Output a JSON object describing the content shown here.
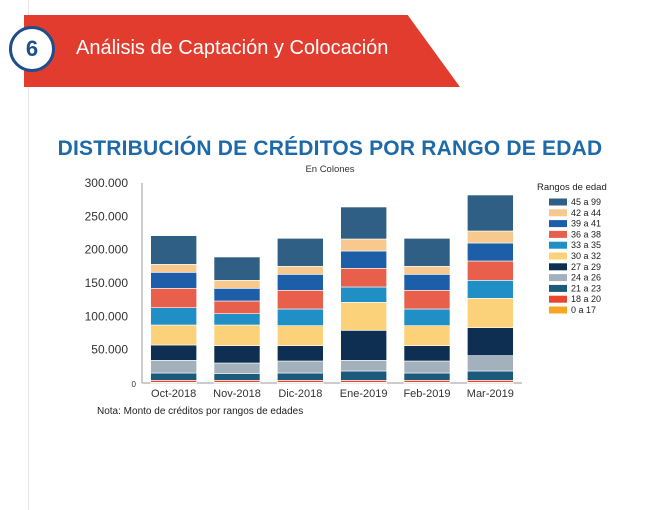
{
  "banner": {
    "number": "6",
    "title": "Análisis de Captación y Colocación"
  },
  "note": "Nota: Monto de créditos por rangos de edades",
  "chart_data": {
    "type": "stacked-bar",
    "title": "DISTRIBUCIÓN DE CRÉDITOS POR RANGO DE EDAD",
    "subtitle": "En Colones",
    "categories": [
      "Oct-2018",
      "Nov-2018",
      "Dic-2018",
      "Ene-2019",
      "Feb-2019",
      "Mar-2019"
    ],
    "ylim": [
      0,
      300000
    ],
    "yticks": [
      0,
      50000,
      100000,
      150000,
      200000,
      250000,
      300000
    ],
    "ytick_labels": [
      "0",
      "50.000",
      "100.000",
      "150.000",
      "200.000",
      "250.000",
      "300.000"
    ],
    "legend_title": "Rangos de edad",
    "legend_position": "right",
    "series": [
      {
        "name": "0 a 17",
        "color": "#f5a623",
        "values": [
          1000,
          1000,
          1000,
          1000,
          1000,
          1000
        ]
      },
      {
        "name": "18 a 20",
        "color": "#e8462e",
        "values": [
          3000,
          3000,
          3000,
          3000,
          3000,
          3000
        ]
      },
      {
        "name": "21 a 23",
        "color": "#1a5a7a",
        "values": [
          11000,
          10000,
          11000,
          14000,
          11000,
          14000
        ]
      },
      {
        "name": "24 a 26",
        "color": "#a3b1bd",
        "values": [
          19000,
          16000,
          18000,
          16000,
          18000,
          23000
        ]
      },
      {
        "name": "27 a 29",
        "color": "#0e2f52",
        "values": [
          23000,
          26000,
          23000,
          45000,
          23000,
          42000
        ]
      },
      {
        "name": "30 a 32",
        "color": "#fbd27a",
        "values": [
          30000,
          31000,
          30000,
          42000,
          30000,
          44000
        ]
      },
      {
        "name": "33 a 35",
        "color": "#1f8fc6",
        "values": [
          26000,
          17000,
          25000,
          23000,
          25000,
          27000
        ]
      },
      {
        "name": "36 a 38",
        "color": "#e8604c",
        "values": [
          29000,
          19000,
          28000,
          28000,
          28000,
          29000
        ]
      },
      {
        "name": "39 a 41",
        "color": "#1c5fa8",
        "values": [
          24000,
          19000,
          24000,
          26000,
          24000,
          27000
        ]
      },
      {
        "name": "42 a 44",
        "color": "#f8c98e",
        "values": [
          12000,
          12000,
          12000,
          18000,
          12000,
          18000
        ]
      },
      {
        "name": "45 a 99",
        "color": "#2f5f85",
        "values": [
          43000,
          35000,
          42000,
          48000,
          42000,
          54000
        ]
      }
    ]
  }
}
